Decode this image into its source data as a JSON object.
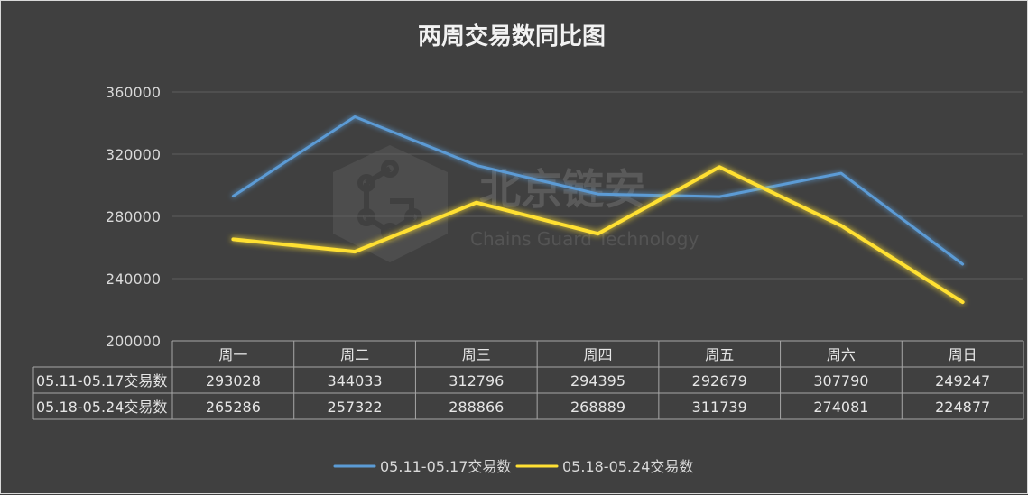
{
  "chart_data": {
    "type": "line",
    "title": "两周交易数同比图",
    "categories": [
      "周一",
      "周二",
      "周三",
      "周四",
      "周五",
      "周六",
      "周日"
    ],
    "y_ticks": [
      "360000",
      "320000",
      "280000",
      "240000",
      "200000"
    ],
    "ylim": [
      200000,
      360000
    ],
    "grid": true,
    "legend": "bottom",
    "series": [
      {
        "name": "05.11-05.17交易数",
        "color": "#5b9bd5",
        "values": [
          293028,
          344033,
          312796,
          294395,
          292679,
          307790,
          249247
        ],
        "labels": [
          "293028",
          "344033",
          "312796",
          "294395",
          "292679",
          "307790",
          "249247"
        ]
      },
      {
        "name": "05.18-05.24交易数",
        "color": "#ffe033",
        "values": [
          265286,
          257322,
          288866,
          268889,
          311739,
          274081,
          224877
        ],
        "labels": [
          "265286",
          "257322",
          "288866",
          "268889",
          "311739",
          "274081",
          "224877"
        ]
      }
    ]
  },
  "watermark": {
    "cn": "北京链安",
    "en": "Chains Guard Technology"
  }
}
